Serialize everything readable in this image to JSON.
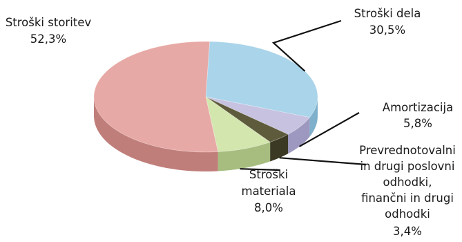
{
  "chart_data": {
    "type": "pie",
    "style": "3d-tilted",
    "legend": "none",
    "slices": [
      {
        "key": "delo",
        "label_lines": [
          "Stroški dela"
        ],
        "value": 30.5,
        "value_text": "30,5%",
        "top_color": "#a9d4ea",
        "side_color": "#7fb0cb"
      },
      {
        "key": "amortizacija",
        "label_lines": [
          "Amortizacija"
        ],
        "value": 5.8,
        "value_text": "5,8%",
        "top_color": "#c6c2e0",
        "side_color": "#9d98bf"
      },
      {
        "key": "prevrednotovalni",
        "label_lines": [
          "Prevrednotovalni",
          "in drugi poslovni",
          "odhodki,",
          "finančni in drugi",
          "odhodki"
        ],
        "value": 3.4,
        "value_text": "3,4%",
        "top_color": "#5e5b3c",
        "side_color": "#3b3924"
      },
      {
        "key": "material",
        "label_lines": [
          "Stroški",
          "materiala"
        ],
        "value": 8.0,
        "value_text": "8,0%",
        "top_color": "#d3e6ae",
        "side_color": "#a6bd7f"
      },
      {
        "key": "storitve",
        "label_lines": [
          "Stroški storitev"
        ],
        "value": 52.3,
        "value_text": "52,3%",
        "top_color": "#e7a9a5",
        "side_color": "#c07e7a"
      }
    ]
  }
}
